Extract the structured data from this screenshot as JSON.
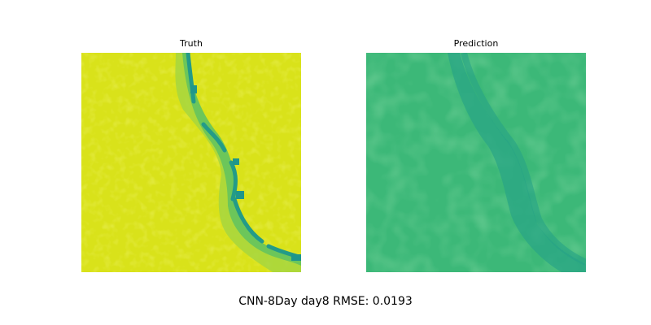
{
  "figure": {
    "panels": [
      {
        "title": "Truth"
      },
      {
        "title": "Prediction"
      }
    ],
    "caption": "CNN-8Day day8 RMSE: 0.0193"
  },
  "colors": {
    "truth_base": "#d9e21a",
    "truth_mid": "#9ed447",
    "truth_river": "#25a884",
    "truth_deep": "#1f968b",
    "pred_base": "#3cb878",
    "pred_river": "#28a585"
  }
}
